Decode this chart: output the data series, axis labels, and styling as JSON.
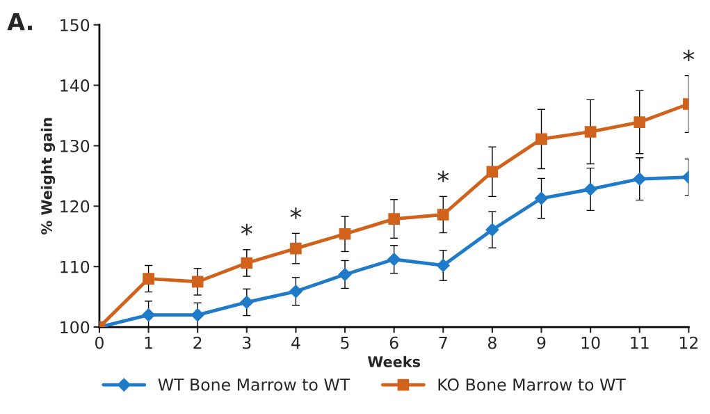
{
  "chart_data": {
    "type": "line",
    "xlabel": "Weeks",
    "ylabel": "% Weight gain",
    "x": [
      0,
      1,
      2,
      3,
      4,
      5,
      6,
      7,
      8,
      9,
      10,
      11,
      12
    ],
    "xlim": [
      0,
      12
    ],
    "xticks": [
      0,
      1,
      2,
      3,
      4,
      5,
      6,
      7,
      8,
      9,
      10,
      11,
      12
    ],
    "ylim": [
      100,
      150
    ],
    "yticks": [
      100,
      110,
      120,
      130,
      140,
      150
    ],
    "grid": false,
    "legend": "bottom",
    "line_style": "solid",
    "series": [
      {
        "name": "WT Bone Marrow to WT",
        "color": "#1f7ac8",
        "marker": "diamond",
        "values": [
          100,
          102.0,
          102.0,
          104.1,
          105.9,
          108.7,
          111.2,
          110.2,
          116.1,
          121.3,
          122.8,
          124.5,
          124.8
        ],
        "errors": [
          null,
          2.3,
          2.0,
          2.2,
          2.3,
          2.3,
          2.3,
          2.5,
          3.0,
          3.3,
          3.5,
          3.5,
          3.0
        ]
      },
      {
        "name": "KO Bone Marrow to WT",
        "color": "#d0621c",
        "marker": "square",
        "values": [
          100,
          108.0,
          107.5,
          110.6,
          113.0,
          115.4,
          117.9,
          118.6,
          125.7,
          131.1,
          132.3,
          133.9,
          136.9
        ],
        "errors": [
          null,
          2.2,
          2.2,
          2.2,
          2.5,
          2.9,
          3.2,
          3.0,
          4.1,
          4.9,
          5.3,
          5.2,
          4.7
        ]
      }
    ],
    "annotations": [
      "A.",
      {
        "text": "*",
        "x": 3,
        "y": 110.6
      },
      {
        "text": "*",
        "x": 4,
        "y": 113.0
      },
      {
        "text": "*",
        "x": 7,
        "y": 118.6
      },
      {
        "text": "*",
        "x": 12,
        "y": 136.9
      }
    ]
  }
}
